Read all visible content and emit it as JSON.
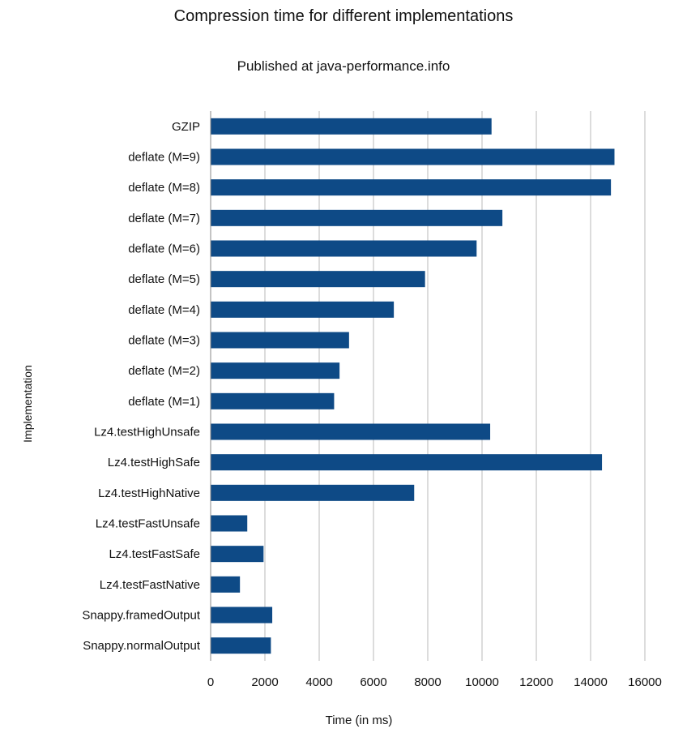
{
  "chart_data": {
    "type": "bar",
    "orientation": "horizontal",
    "title": "Compression time for different implementations",
    "subtitle": "Published at java-performance.info",
    "xlabel": "Time (in ms)",
    "ylabel": "Implementation",
    "xlim": [
      0,
      16000
    ],
    "xticks": [
      0,
      2000,
      4000,
      6000,
      8000,
      10000,
      12000,
      14000,
      16000
    ],
    "grid": true,
    "colors": {
      "bar": "#0e4a86",
      "grid": "#b8b8b8",
      "axis": "#888888"
    },
    "categories": [
      "GZIP",
      "deflate (M=9)",
      "deflate (M=8)",
      "deflate (M=7)",
      "deflate (M=6)",
      "deflate (M=5)",
      "deflate (M=4)",
      "deflate (M=3)",
      "deflate (M=2)",
      "deflate (M=1)",
      "Lz4.testHighUnsafe",
      "Lz4.testHighSafe",
      "Lz4.testHighNative",
      "Lz4.testFastUnsafe",
      "Lz4.testFastSafe",
      "Lz4.testFastNative",
      "Snappy.framedOutput",
      "Snappy.normalOutput"
    ],
    "values": [
      10350,
      14880,
      14750,
      10750,
      9800,
      7900,
      6750,
      5100,
      4750,
      4550,
      10300,
      14420,
      7500,
      1350,
      1950,
      1080,
      2270,
      2220
    ]
  }
}
